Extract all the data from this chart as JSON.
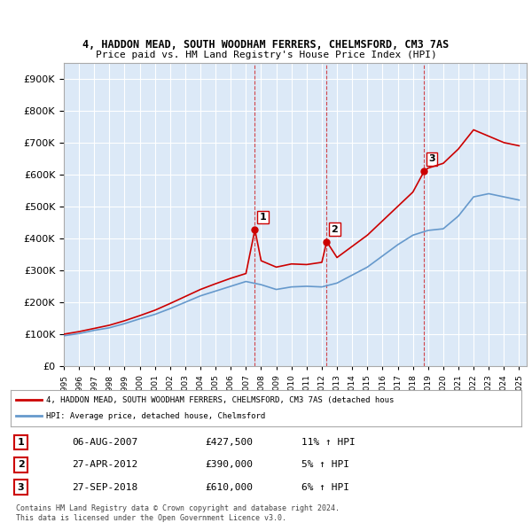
{
  "title1": "4, HADDON MEAD, SOUTH WOODHAM FERRERS, CHELMSFORD, CM3 7AS",
  "title2": "Price paid vs. HM Land Registry's House Price Index (HPI)",
  "ylabel": "",
  "background_color": "#ffffff",
  "plot_bg_color": "#dce9f7",
  "grid_color": "#ffffff",
  "sale_color": "#cc0000",
  "hpi_color": "#6699cc",
  "sale_points": [
    {
      "year": 2007.59,
      "value": 427500,
      "label": "1"
    },
    {
      "year": 2012.32,
      "value": 390000,
      "label": "2"
    },
    {
      "year": 2018.74,
      "value": 610000,
      "label": "3"
    }
  ],
  "vline_years": [
    2007.59,
    2012.32,
    2018.74
  ],
  "table_rows": [
    {
      "num": "1",
      "date": "06-AUG-2007",
      "price": "£427,500",
      "hpi": "11% ↑ HPI"
    },
    {
      "num": "2",
      "date": "27-APR-2012",
      "price": "£390,000",
      "hpi": "5% ↑ HPI"
    },
    {
      "num": "3",
      "date": "27-SEP-2018",
      "price": "£610,000",
      "hpi": "6% ↑ HPI"
    }
  ],
  "legend1": "4, HADDON MEAD, SOUTH WOODHAM FERRERS, CHELMSFORD, CM3 7AS (detached hous",
  "legend2": "HPI: Average price, detached house, Chelmsford",
  "footer1": "Contains HM Land Registry data © Crown copyright and database right 2024.",
  "footer2": "This data is licensed under the Open Government Licence v3.0.",
  "xmin": 1995,
  "xmax": 2025.5,
  "ymin": 0,
  "ymax": 950000
}
